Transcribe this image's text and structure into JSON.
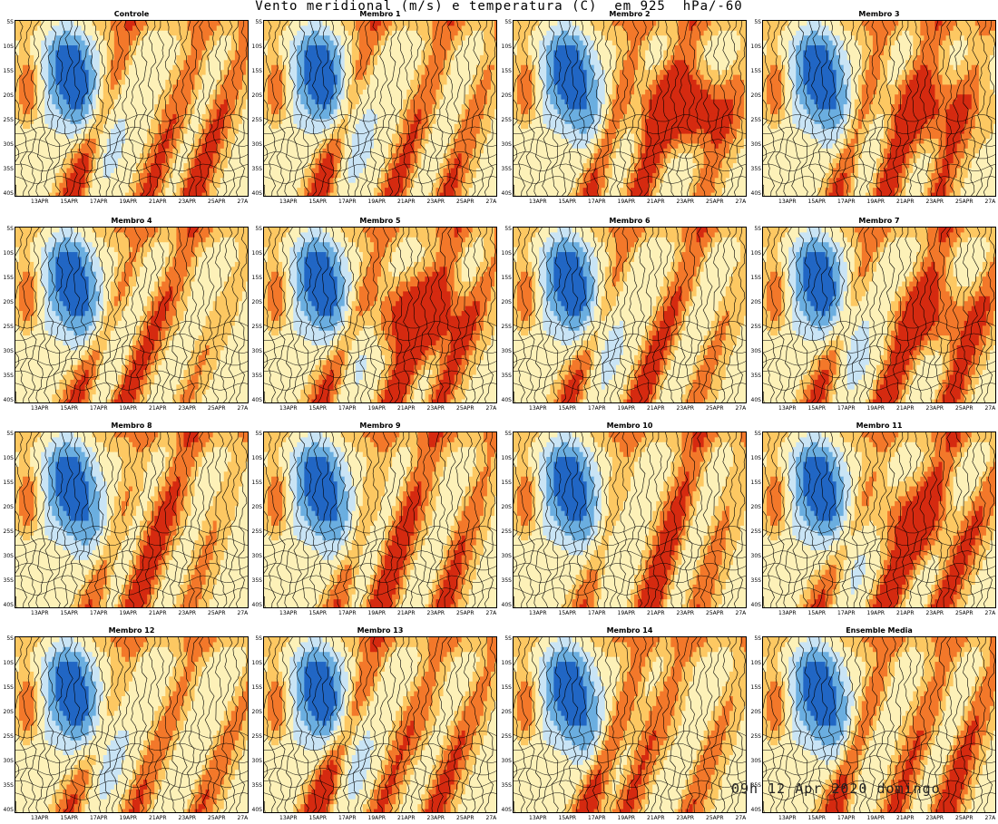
{
  "title": "Vento meridional (m/s) e temperatura (C)  em 925  hPa/-60",
  "stamp": "09h 12 Apr 2020 domingo",
  "colors": {
    "strong_south": "#2166c4",
    "south": "#6baee0",
    "weak_south": "#c9e4f5",
    "neutral": "#fdf1b8",
    "weak_north": "#fdc862",
    "north": "#f3782a",
    "strong_north": "#d52a10",
    "contour": "#000000"
  },
  "chart_data": {
    "type": "heatmap",
    "description_fields": [
      "y-axis latitude",
      "x-axis date",
      "shaded meridional wind",
      "contoured temperature"
    ],
    "y_ticks": [
      "5S",
      "10S",
      "15S",
      "20S",
      "25S",
      "30S",
      "35S",
      "40S"
    ],
    "x_ticks": [
      "13APR",
      "15APR",
      "17APR",
      "19APR",
      "21APR",
      "23APR",
      "25APR",
      "27A"
    ],
    "panels": [
      {
        "name": "Controle"
      },
      {
        "name": "Membro 1"
      },
      {
        "name": "Membro 2"
      },
      {
        "name": "Membro 3"
      },
      {
        "name": "Membro 4"
      },
      {
        "name": "Membro 5"
      },
      {
        "name": "Membro 6"
      },
      {
        "name": "Membro 7"
      },
      {
        "name": "Membro 8"
      },
      {
        "name": "Membro 9"
      },
      {
        "name": "Membro 10"
      },
      {
        "name": "Membro 11"
      },
      {
        "name": "Membro 12"
      },
      {
        "name": "Membro 13"
      },
      {
        "name": "Membro 14"
      },
      {
        "name": "Ensemble Media"
      }
    ]
  }
}
